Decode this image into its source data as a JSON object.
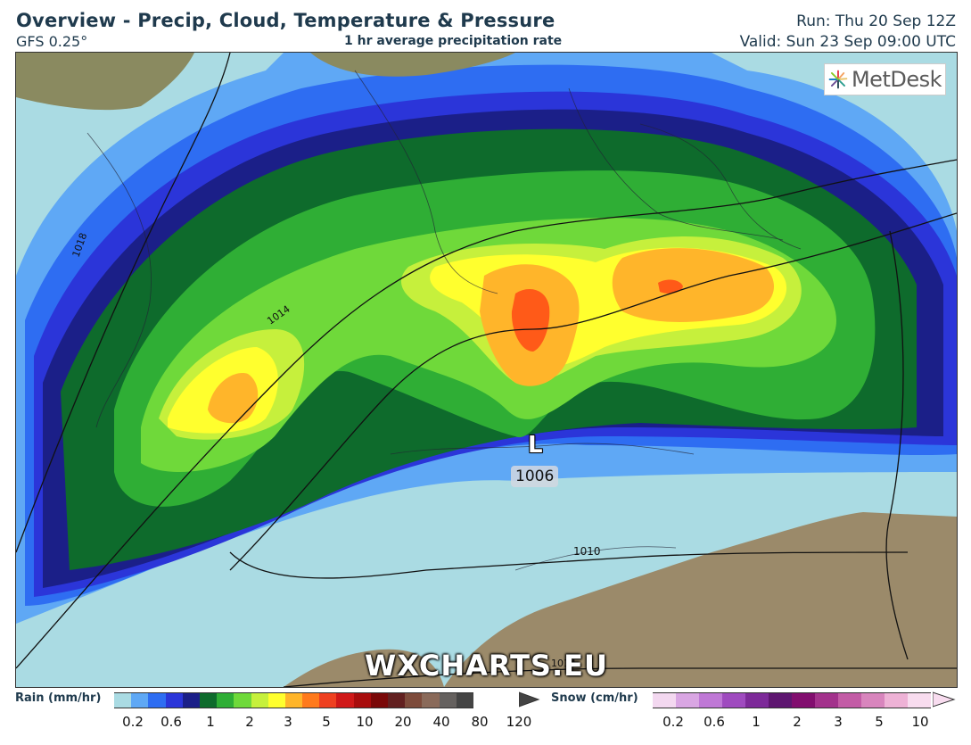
{
  "header": {
    "title": "Overview - Precip, Cloud, Temperature & Pressure",
    "model": "GFS 0.25°",
    "subtitle": "1 hr average precipitation rate",
    "run": "Run: Thu 20 Sep 12Z",
    "valid": "Valid: Sun 23 Sep 09:00 UTC"
  },
  "logo": {
    "text": "MetDesk"
  },
  "watermark": "WXCHARTS.EU",
  "map": {
    "low": {
      "symbol": "L",
      "pressure": "1006"
    },
    "isobar_labels": [
      "1018",
      "1014",
      "1010",
      "1014"
    ]
  },
  "legend": {
    "rain_label": "Rain (mm/hr)",
    "rain_colors": [
      "#aadbe3",
      "#5fa8f5",
      "#2e6df2",
      "#2b35d9",
      "#1b1f88",
      "#0e6b2c",
      "#2fae35",
      "#6fd93a",
      "#c6f03c",
      "#ffff2e",
      "#ffb52a",
      "#ff7a1c",
      "#ef4020",
      "#d01818",
      "#a80c0c",
      "#7a0808",
      "#622020",
      "#7d4b3b",
      "#8a6a5a",
      "#65615f",
      "#444444"
    ],
    "rain_ticks": [
      "0.2",
      "0.6",
      "1",
      "2",
      "3",
      "5",
      "10",
      "20",
      "40",
      "80",
      "120"
    ],
    "snow_label": "Snow (cm/hr)",
    "snow_colors": [
      "#f3d8f0",
      "#d9a6e3",
      "#bf78d6",
      "#9f4bbf",
      "#7d2a99",
      "#5e1670",
      "#820e6f",
      "#a3328c",
      "#c35ca6",
      "#d885bd",
      "#eeb2d6",
      "#f8dcef"
    ],
    "snow_ticks": [
      "0.2",
      "0.6",
      "1",
      "2",
      "3",
      "5",
      "10"
    ]
  }
}
